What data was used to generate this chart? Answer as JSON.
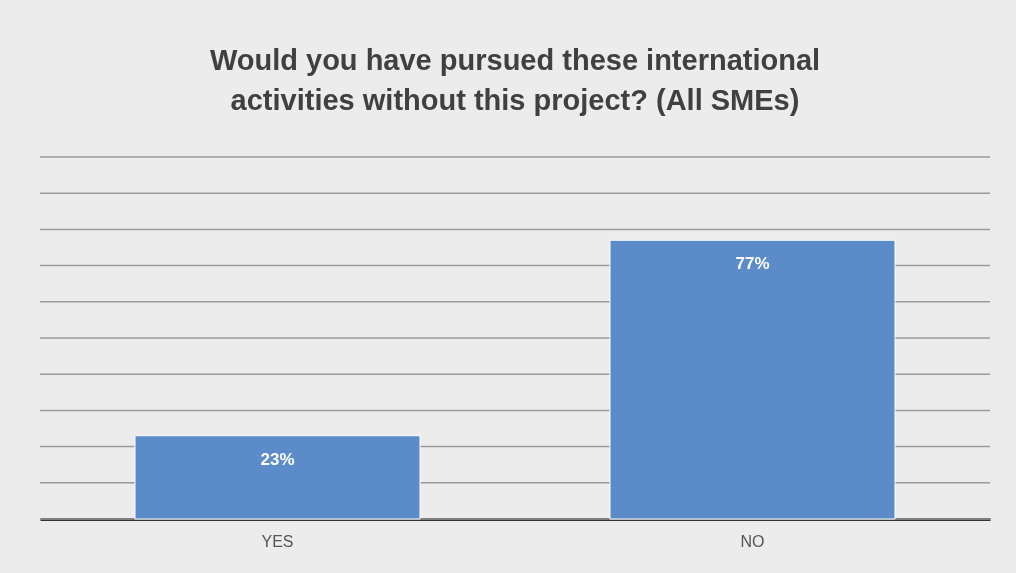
{
  "chart_data": {
    "type": "bar",
    "title": "Would you have pursued these international activities without this project? (All SMEs)",
    "categories": [
      "YES",
      "NO"
    ],
    "values": [
      23,
      77
    ],
    "value_labels": [
      "23%",
      "77%"
    ],
    "color": "#5b8bc9",
    "ylim": [
      0,
      100
    ],
    "yticks": [
      {
        "value": 0,
        "label": null
      },
      {
        "value": 10,
        "label": null
      },
      {
        "value": 20,
        "label": null
      },
      {
        "value": 30,
        "label": null
      },
      {
        "value": 40,
        "label": null
      },
      {
        "value": 50,
        "label": null
      },
      {
        "value": 60,
        "label": null
      },
      {
        "value": 70,
        "label": null
      },
      {
        "value": 80,
        "label": null
      },
      {
        "value": 90,
        "label": null
      },
      {
        "value": 100,
        "label": null
      }
    ],
    "grid": "y",
    "tick_labels": "x"
  }
}
